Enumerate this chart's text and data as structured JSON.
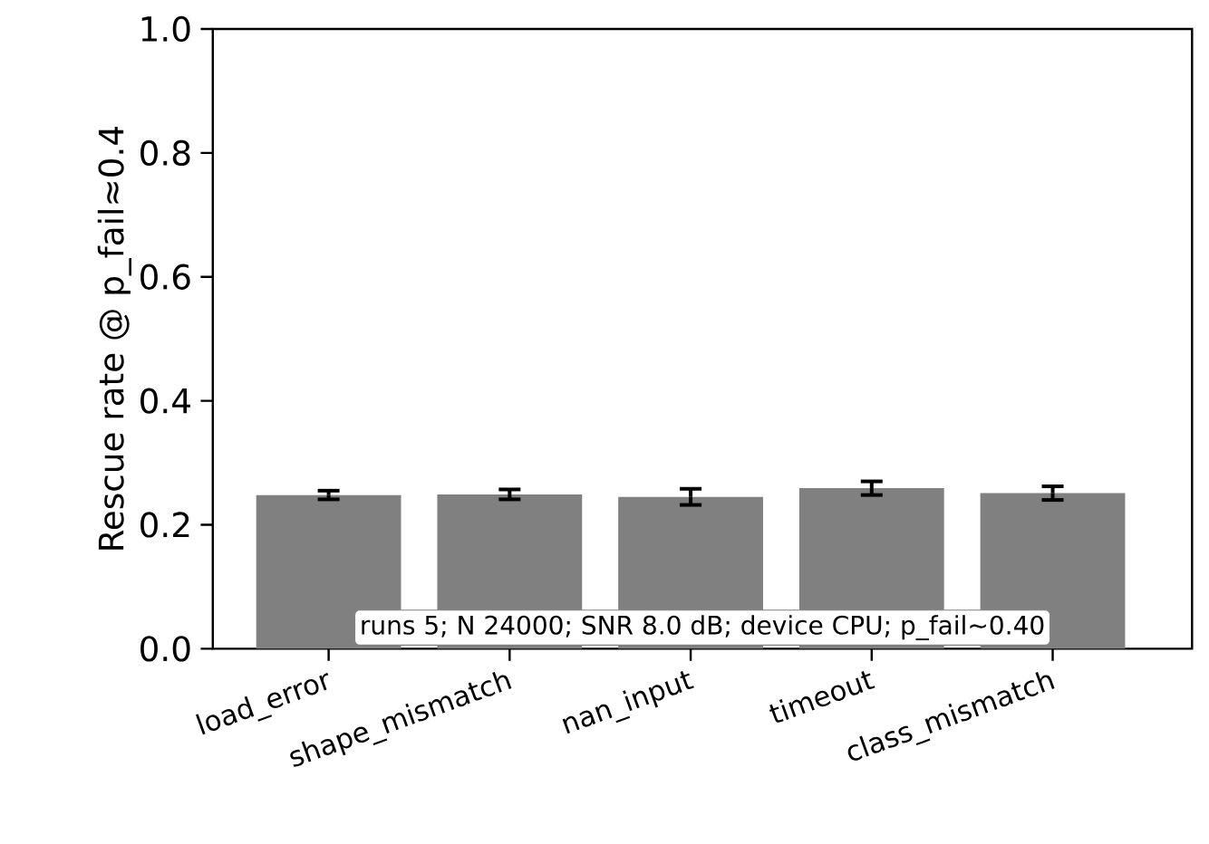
{
  "chart_data": {
    "type": "bar",
    "ylabel": "Rescue rate @ p_fail≈0.4",
    "categories": [
      "load_error",
      "shape_mismatch",
      "nan_input",
      "timeout",
      "class_mismatch"
    ],
    "values": [
      0.248,
      0.249,
      0.245,
      0.259,
      0.251
    ],
    "errors": [
      0.007,
      0.008,
      0.013,
      0.011,
      0.011
    ],
    "color": "#808080",
    "ylim": [
      0,
      1
    ],
    "yticks": [
      {
        "value": 0,
        "label": "0.0"
      },
      {
        "value": 0.2,
        "label": "0.2"
      },
      {
        "value": 0.4,
        "label": "0.4"
      },
      {
        "value": 0.6,
        "label": "0.6"
      },
      {
        "value": 0.8,
        "label": "0.8"
      },
      {
        "value": 1,
        "label": "1.0"
      }
    ],
    "annotations": [
      "runs 5; N 24000; SNR 8.0 dB; device CPU; p_fail~0.40"
    ]
  }
}
